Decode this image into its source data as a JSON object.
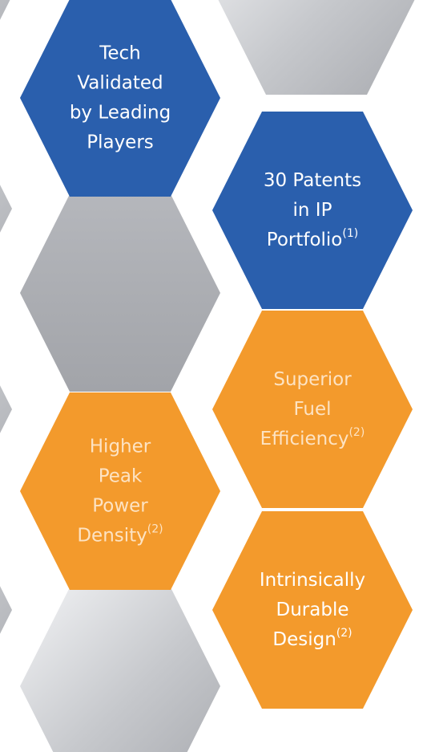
{
  "hexagons": [
    {
      "lines": [
        "Tech",
        "Validated",
        "by Leading",
        "Players"
      ]
    },
    {
      "lines": [
        "30 Patents",
        "in IP",
        "Portfolio"
      ],
      "sup": "(1)"
    },
    {
      "lines": [
        "Superior",
        "Fuel",
        "Efficiency"
      ],
      "sup": "(2)"
    },
    {
      "lines": [
        "Higher",
        "Peak",
        "Power",
        "Density"
      ],
      "sup": "(2)"
    },
    {
      "lines": [
        "Intrinsically",
        "Durable",
        "Design"
      ],
      "sup": "(2)"
    }
  ]
}
